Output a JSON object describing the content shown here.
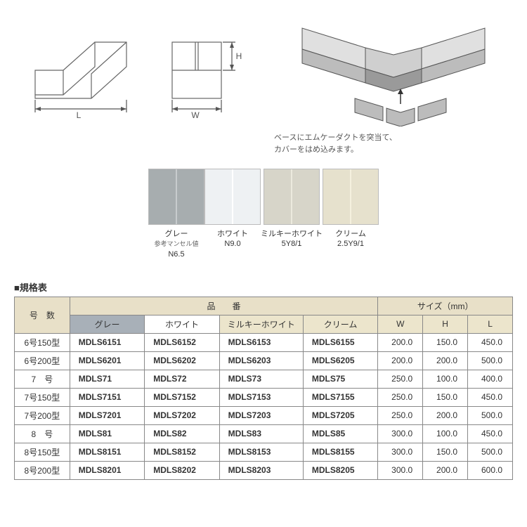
{
  "diagrams": {
    "labels": {
      "L": "L",
      "W": "W",
      "H": "H"
    },
    "caption_line1": "ベースにエムケーダクトを突当て、",
    "caption_line2": "カバーをはめ込みます。"
  },
  "swatches": [
    {
      "name": "グレー",
      "sub1": "参考マンセル値",
      "sub2": "N6.5",
      "bg": "#a7adaf",
      "divider": "#c8ccce"
    },
    {
      "name": "ホワイト",
      "sub1": "",
      "sub2": "N9.0",
      "bg": "#eef1f3",
      "divider": "#ffffff"
    },
    {
      "name": "ミルキーホワイト",
      "sub1": "",
      "sub2": "5Y8/1",
      "bg": "#d7d5c9",
      "divider": "#eceade"
    },
    {
      "name": "クリーム",
      "sub1": "",
      "sub2": "2.5Y9/1",
      "bg": "#e6e1cd",
      "divider": "#f4f0de"
    }
  ],
  "spec_title": "■規格表",
  "table": {
    "headers": {
      "model_no": "号　数",
      "part_no": "品　　番",
      "size": "サイズ（mm）",
      "gray": "グレー",
      "white": "ホワイト",
      "milky": "ミルキーホワイト",
      "cream": "クリーム",
      "W": "W",
      "H": "H",
      "L": "L"
    },
    "rows": [
      {
        "model": "6号150型",
        "gray": "MDLS6151",
        "white": "MDLS6152",
        "milky": "MDLS6153",
        "cream": "MDLS6155",
        "W": "200.0",
        "H": "150.0",
        "L": "450.0"
      },
      {
        "model": "6号200型",
        "gray": "MDLS6201",
        "white": "MDLS6202",
        "milky": "MDLS6203",
        "cream": "MDLS6205",
        "W": "200.0",
        "H": "200.0",
        "L": "500.0"
      },
      {
        "model": "7　号",
        "gray": "MDLS71",
        "white": "MDLS72",
        "milky": "MDLS73",
        "cream": "MDLS75",
        "W": "250.0",
        "H": "100.0",
        "L": "400.0"
      },
      {
        "model": "7号150型",
        "gray": "MDLS7151",
        "white": "MDLS7152",
        "milky": "MDLS7153",
        "cream": "MDLS7155",
        "W": "250.0",
        "H": "150.0",
        "L": "450.0"
      },
      {
        "model": "7号200型",
        "gray": "MDLS7201",
        "white": "MDLS7202",
        "milky": "MDLS7203",
        "cream": "MDLS7205",
        "W": "250.0",
        "H": "200.0",
        "L": "500.0"
      },
      {
        "model": "8　号",
        "gray": "MDLS81",
        "white": "MDLS82",
        "milky": "MDLS83",
        "cream": "MDLS85",
        "W": "300.0",
        "H": "100.0",
        "L": "450.0"
      },
      {
        "model": "8号150型",
        "gray": "MDLS8151",
        "white": "MDLS8152",
        "milky": "MDLS8153",
        "cream": "MDLS8155",
        "W": "300.0",
        "H": "150.0",
        "L": "500.0"
      },
      {
        "model": "8号200型",
        "gray": "MDLS8201",
        "white": "MDLS8202",
        "milky": "MDLS8203",
        "cream": "MDLS8205",
        "W": "300.0",
        "H": "200.0",
        "L": "600.0"
      }
    ]
  },
  "colors": {
    "line": "#666666",
    "dim": "#555555",
    "iso_light": "#e0e0e0",
    "iso_mid": "#bcbcbc",
    "iso_dark": "#9a9a9a"
  }
}
